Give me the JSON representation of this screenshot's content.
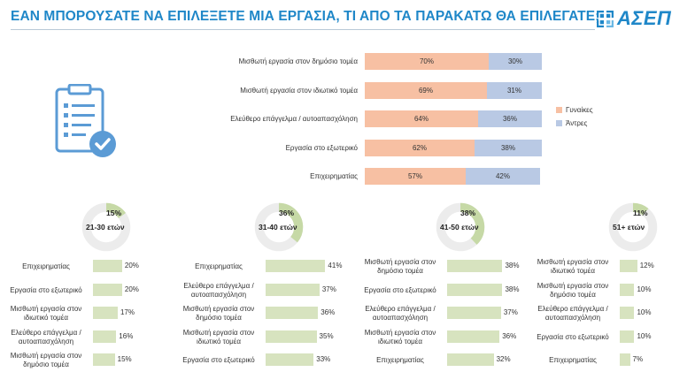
{
  "header": {
    "title": "ΕΑΝ ΜΠΟΡΟΥΣΑΤΕ ΝΑ ΕΠΙΛΕΞΕΤΕ ΜΙΑ ΕΡΓΑΣΙΑ, ΤΙ ΑΠΟ ΤΑ ΠΑΡΑΚΑΤΩ ΘΑ ΕΠΙΛΕΓΑΤΕ;",
    "logo_text": "ΑΣΕΠ"
  },
  "colors": {
    "accent": "#1f87c8",
    "women": "#f7c0a3",
    "men": "#b9c9e4",
    "age_bar": "#d7e3bf",
    "donut_fill": "#c6d9a6",
    "donut_rest": "#ececec"
  },
  "icons": {
    "illustration": "clipboard-checklist-icon",
    "logo": "asep-logo-icon"
  },
  "chart_data": [
    {
      "type": "bar",
      "orientation": "horizontal",
      "stacked": true,
      "categories": [
        "Μισθωτή εργασία στον δημόσιο τομέα",
        "Μισθωτή εργασία στον ιδιωτικό τομέα",
        "Ελεύθερο επάγγελμα / αυτοαπασχόληση",
        "Εργασία στο εξωτερικό",
        "Επιχειρηματίας"
      ],
      "series": [
        {
          "name": "Γυναίκες",
          "values": [
            70,
            69,
            64,
            62,
            57
          ],
          "labels": [
            "70%",
            "69%",
            "64%",
            "62%",
            "57%"
          ]
        },
        {
          "name": "Άντρες",
          "values": [
            30,
            31,
            36,
            38,
            42
          ],
          "labels": [
            "30%",
            "31%",
            "36%",
            "38%",
            "42%"
          ]
        }
      ],
      "xlim": [
        0,
        100
      ],
      "legend": "right"
    },
    {
      "type": "bar",
      "orientation": "horizontal",
      "group": "21-30 ετών",
      "share_label": "15%",
      "share": 15,
      "categories": [
        "Επιχειρηματίας",
        "Εργασία στο εξωτερικό",
        "Μισθωτή εργασία στον ιδιωτικό τομέα",
        "Ελεύθερο επάγγελμα / αυτοαπασχόληση",
        "Μισθωτή εργασία στον δημόσιο τομέα"
      ],
      "values": [
        20,
        20,
        17,
        16,
        15
      ],
      "labels": [
        "20%",
        "20%",
        "17%",
        "16%",
        "15%"
      ]
    },
    {
      "type": "bar",
      "orientation": "horizontal",
      "group": "31-40 ετών",
      "share_label": "36%",
      "share": 36,
      "categories": [
        "Επιχειρηματίας",
        "Ελεύθερο επάγγελμα / αυτοαπασχόληση",
        "Μισθωτή εργασία στον δημόσιο τομέα",
        "Μισθωτή εργασία στον ιδιωτικό τομέα",
        "Εργασία στο εξωτερικό"
      ],
      "values": [
        41,
        37,
        36,
        35,
        33
      ],
      "labels": [
        "41%",
        "37%",
        "36%",
        "35%",
        "33%"
      ]
    },
    {
      "type": "bar",
      "orientation": "horizontal",
      "group": "41-50 ετών",
      "share_label": "38%",
      "share": 38,
      "categories": [
        "Μισθωτή εργασία στον δημόσιο τομέα",
        "Εργασία στο εξωτερικό",
        "Ελεύθερο επάγγελμα / αυτοαπασχόληση",
        "Μισθωτή εργασία στον ιδιωτικό τομέα",
        "Επιχειρηματίας"
      ],
      "values": [
        38,
        38,
        37,
        36,
        32
      ],
      "labels": [
        "38%",
        "38%",
        "37%",
        "36%",
        "32%"
      ]
    },
    {
      "type": "bar",
      "orientation": "horizontal",
      "group": "51+ ετών",
      "share_label": "11%",
      "share": 11,
      "categories": [
        "Μισθωτή εργασία στον ιδιωτικό τομέα",
        "Μισθωτή εργασία στον δημόσιο τομέα",
        "Ελεύθερο επάγγελμα / αυτοαπασχόληση",
        "Εργασία στο εξωτερικό",
        "Επιχειρηματίας"
      ],
      "values": [
        12,
        10,
        10,
        10,
        7
      ],
      "labels": [
        "12%",
        "10%",
        "10%",
        "10%",
        "7%"
      ]
    }
  ]
}
